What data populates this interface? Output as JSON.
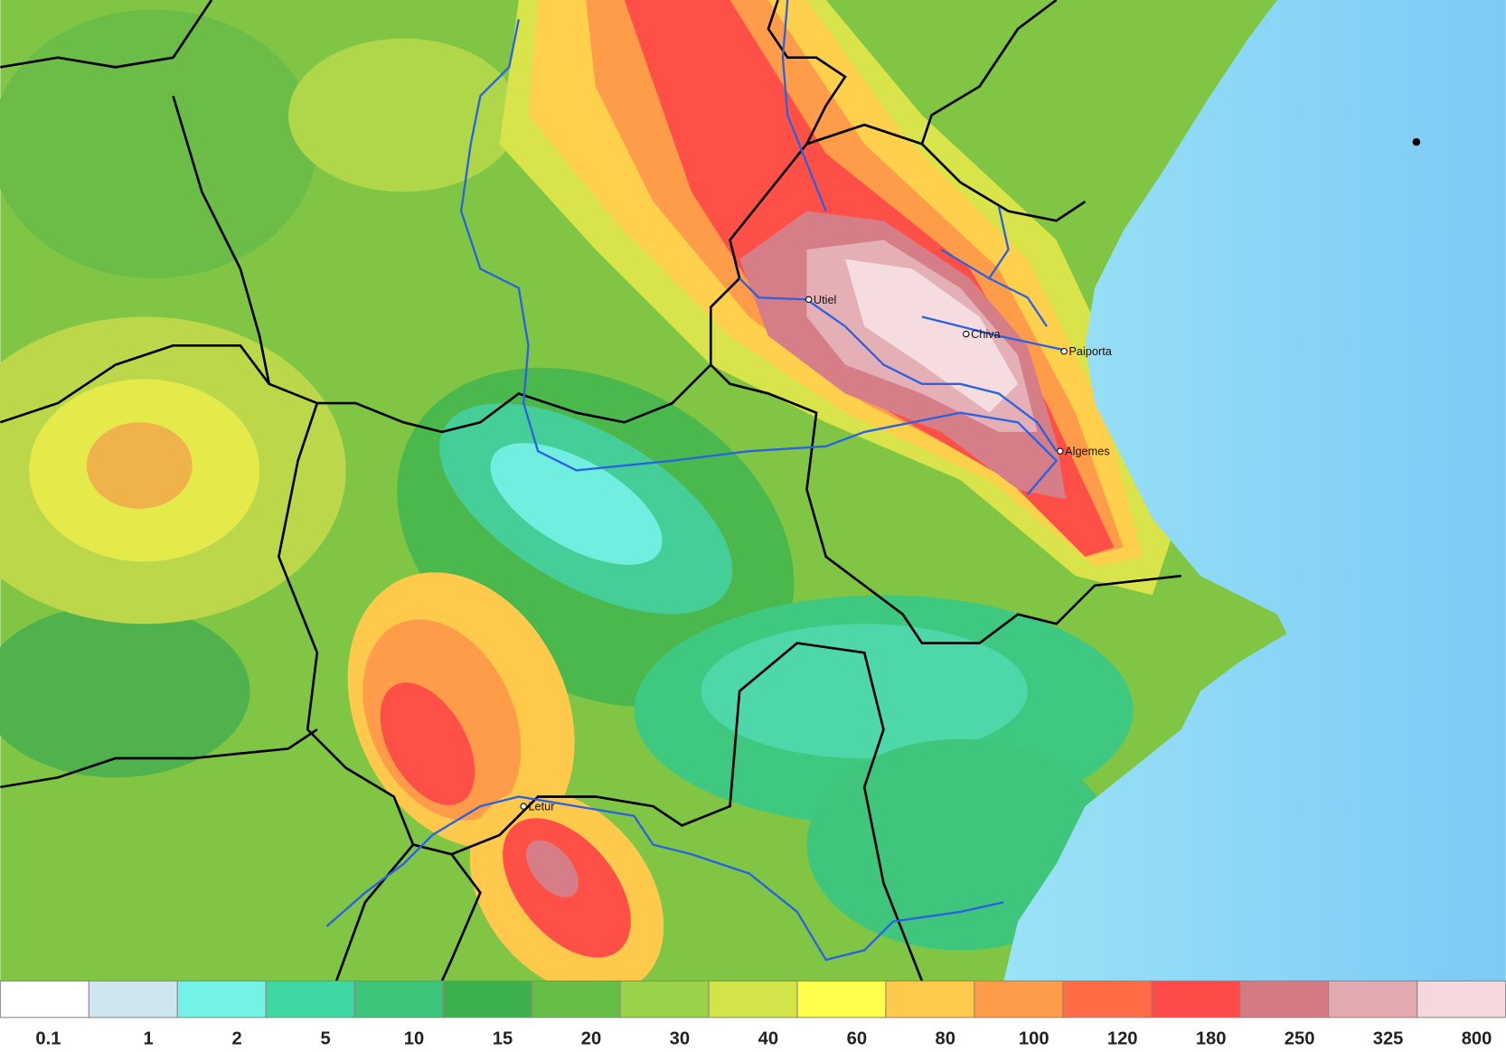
{
  "places": [
    {
      "name": "Utiel"
    },
    {
      "name": "Chiva"
    },
    {
      "name": "Paiporta"
    },
    {
      "name": "Algemes"
    },
    {
      "name": "Letur"
    }
  ],
  "legend": {
    "levels": [
      0.1,
      1,
      2,
      5,
      10,
      15,
      20,
      30,
      40,
      60,
      80,
      100,
      120,
      180,
      250,
      325,
      800
    ],
    "colors": [
      "#ffffff",
      "#cfe6ee",
      "#74f2e6",
      "#40d8a2",
      "#3cc47a",
      "#3cb04c",
      "#66be46",
      "#9cd24a",
      "#d2e44a",
      "#ffff4c",
      "#ffca4c",
      "#ff9c4a",
      "#ff6c46",
      "#ff4a4a",
      "#d47a84",
      "#e2aab0",
      "#f4d8dc"
    ]
  }
}
